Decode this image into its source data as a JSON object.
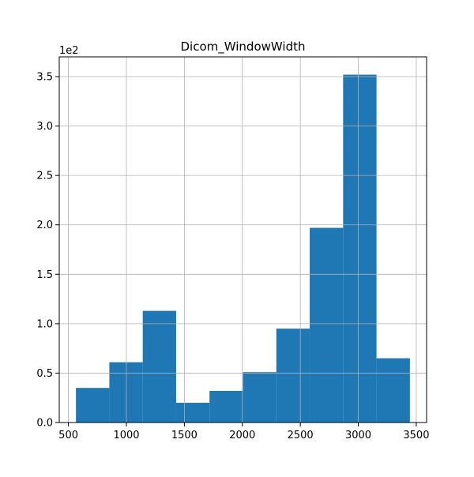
{
  "chart_data": {
    "type": "bar",
    "title": "Dicom_WindowWidth",
    "xlabel": "",
    "ylabel": "",
    "y_multiplier_label": "1e2",
    "bins": [
      {
        "start": 565,
        "end": 853,
        "value": 35
      },
      {
        "start": 853,
        "end": 1141,
        "value": 61
      },
      {
        "start": 1141,
        "end": 1429,
        "value": 113
      },
      {
        "start": 1429,
        "end": 1717,
        "value": 20
      },
      {
        "start": 1717,
        "end": 2005,
        "value": 32
      },
      {
        "start": 2005,
        "end": 2293,
        "value": 51
      },
      {
        "start": 2293,
        "end": 2581,
        "value": 95
      },
      {
        "start": 2581,
        "end": 2869,
        "value": 197
      },
      {
        "start": 2869,
        "end": 3157,
        "value": 352
      },
      {
        "start": 3157,
        "end": 3445,
        "value": 65
      }
    ],
    "xlim": [
      421,
      3589
    ],
    "ylim": [
      0,
      370
    ],
    "x_ticks": [
      {
        "value": 500,
        "label": "500"
      },
      {
        "value": 1000,
        "label": "1000"
      },
      {
        "value": 1500,
        "label": "1500"
      },
      {
        "value": 2000,
        "label": "2000"
      },
      {
        "value": 2500,
        "label": "2500"
      },
      {
        "value": 3000,
        "label": "3000"
      },
      {
        "value": 3500,
        "label": "3500"
      }
    ],
    "y_ticks": [
      {
        "value": 0,
        "label": "0.0"
      },
      {
        "value": 50,
        "label": "0.5"
      },
      {
        "value": 100,
        "label": "1.0"
      },
      {
        "value": 150,
        "label": "1.5"
      },
      {
        "value": 200,
        "label": "2.0"
      },
      {
        "value": 250,
        "label": "2.5"
      },
      {
        "value": 300,
        "label": "3.0"
      },
      {
        "value": 350,
        "label": "3.5"
      }
    ],
    "grid": true,
    "bar_color": "#1f77b4",
    "grid_color": "#b0b0b0"
  }
}
